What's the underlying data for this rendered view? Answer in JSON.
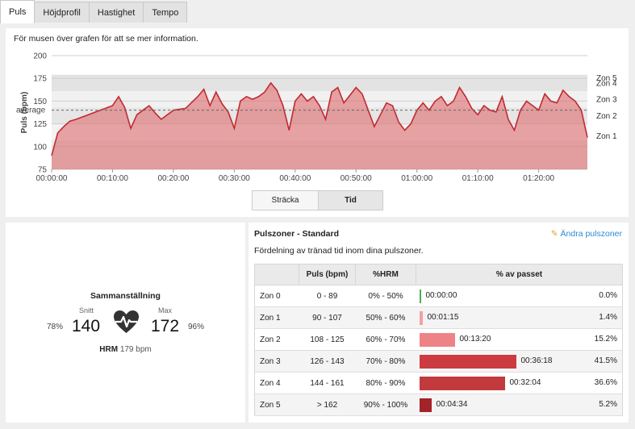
{
  "tabs": [
    "Puls",
    "Höjdprofil",
    "Hastighet",
    "Tempo"
  ],
  "chart": {
    "hint": "För musen över grafen för att se mer information.",
    "ylabel": "Puls (bpm)",
    "average_label": "average",
    "average_value": 140,
    "toggle": [
      "Sträcka",
      "Tid"
    ],
    "zone_labels": [
      "Zon 5",
      "Zon 4",
      "Zon 3",
      "Zon 2",
      "Zon 1"
    ]
  },
  "chart_data": {
    "type": "area",
    "title": "",
    "xlabel": "",
    "ylabel": "Puls (bpm)",
    "ylim": [
      75,
      200
    ],
    "yticks": [
      75,
      100,
      125,
      150,
      175,
      200
    ],
    "xticks": [
      "00:00:00",
      "00:10:00",
      "00:20:00",
      "00:30:00",
      "00:40:00",
      "00:50:00",
      "01:00:00",
      "01:10:00",
      "01:20:00"
    ],
    "zone_bounds": [
      107,
      125,
      143,
      161,
      179
    ],
    "x_minutes": [
      0,
      1,
      2,
      3,
      4,
      6,
      8,
      10,
      11,
      12,
      13,
      14,
      15,
      16,
      17,
      18,
      20,
      22,
      24,
      25,
      26,
      27,
      28,
      29,
      30,
      31,
      32,
      33,
      34,
      35,
      36,
      37,
      38,
      39,
      40,
      41,
      42,
      43,
      44,
      45,
      46,
      47,
      48,
      50,
      51,
      52,
      53,
      54,
      55,
      56,
      57,
      58,
      59,
      60,
      61,
      62,
      63,
      64,
      65,
      66,
      67,
      68,
      69,
      70,
      71,
      72,
      73,
      74,
      75,
      76,
      77,
      78,
      79,
      80,
      81,
      82,
      83,
      84,
      85,
      86,
      87,
      88
    ],
    "values": [
      90,
      115,
      122,
      128,
      130,
      135,
      140,
      145,
      155,
      143,
      120,
      135,
      140,
      145,
      137,
      130,
      140,
      142,
      155,
      163,
      145,
      160,
      147,
      138,
      120,
      150,
      155,
      152,
      155,
      160,
      170,
      162,
      145,
      118,
      150,
      158,
      150,
      155,
      145,
      130,
      160,
      165,
      148,
      165,
      158,
      140,
      122,
      135,
      148,
      145,
      127,
      118,
      125,
      140,
      148,
      140,
      150,
      155,
      145,
      150,
      165,
      155,
      142,
      135,
      145,
      140,
      138,
      155,
      130,
      118,
      140,
      150,
      145,
      140,
      158,
      150,
      148,
      162,
      155,
      150,
      140,
      110
    ]
  },
  "summary": {
    "title": "Sammanställning",
    "avg_label": "Snitt",
    "avg_value": "140",
    "avg_pct": "78%",
    "max_label": "Max",
    "max_value": "172",
    "max_pct": "96%",
    "hrm_label": "HRM",
    "hrm_value": "179 bpm"
  },
  "zones": {
    "title": "Pulszoner - Standard",
    "edit": "Ändra pulszoner",
    "description": "Fördelning av tränad tid inom dina pulszoner.",
    "headers": [
      "",
      "Puls (bpm)",
      "%HRM",
      "% av passet"
    ],
    "rows": [
      {
        "zone": "Zon 0",
        "bpm": "0 - 89",
        "hrm": "0% - 50%",
        "time": "00:00:00",
        "pct": "0.0%",
        "frac": 0.0,
        "color": "#4caf50"
      },
      {
        "zone": "Zon 1",
        "bpm": "90 - 107",
        "hrm": "50% - 60%",
        "time": "00:01:15",
        "pct": "1.4%",
        "frac": 0.014,
        "color": "#f2a0a5"
      },
      {
        "zone": "Zon 2",
        "bpm": "108 - 125",
        "hrm": "60% - 70%",
        "time": "00:13:20",
        "pct": "15.2%",
        "frac": 0.152,
        "color": "#ee8387"
      },
      {
        "zone": "Zon 3",
        "bpm": "126 - 143",
        "hrm": "70% - 80%",
        "time": "00:36:18",
        "pct": "41.5%",
        "frac": 0.415,
        "color": "#cc3b40"
      },
      {
        "zone": "Zon 4",
        "bpm": "144 - 161",
        "hrm": "80% - 90%",
        "time": "00:32:04",
        "pct": "36.6%",
        "frac": 0.366,
        "color": "#c2393e"
      },
      {
        "zone": "Zon 5",
        "bpm": "> 162",
        "hrm": "90% - 100%",
        "time": "00:04:34",
        "pct": "5.2%",
        "frac": 0.052,
        "color": "#a32328"
      }
    ]
  }
}
